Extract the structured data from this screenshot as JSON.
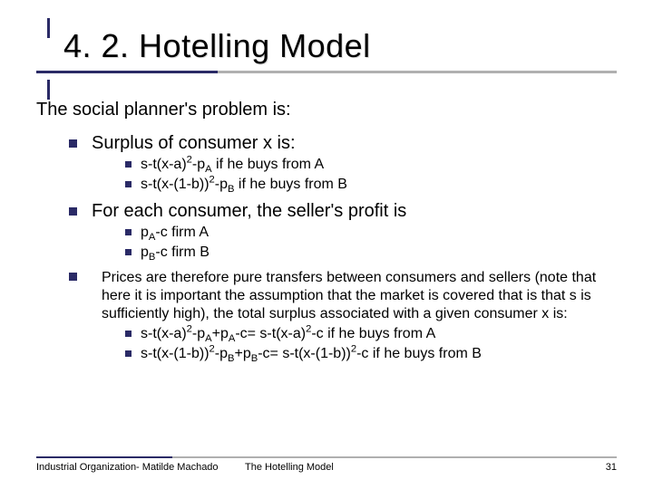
{
  "colors": {
    "bullet": "#2a2a66",
    "underline_grey": "#b0b0b0",
    "underline_navy": "#2a2a66",
    "text": "#000000",
    "bg": "#ffffff"
  },
  "title": "4. 2. Hotelling Model",
  "lead": "The social planner's problem is:",
  "items": {
    "p1": "Surplus of consumer x is:",
    "p1a_pre": "s-t(x-a)",
    "p1a_post": "-p",
    "p1a_tail": " if he buys from A",
    "p1b_pre": "s-t(x-(1-b))",
    "p1b_post": "-p",
    "p1b_tail": " if he buys from B",
    "p2": "For each consumer, the seller's profit is",
    "p2a_pre": "p",
    "p2a_post": "-c firm A",
    "p2b_pre": "p",
    "p2b_post": "-c firm B",
    "p3": "Prices are therefore pure transfers between consumers and sellers (note that here it is important the assumption that the market is covered that is that s is sufficiently high), the total surplus associated with a given consumer x is:",
    "p3a_l": "s-t(x-a)",
    "p3a_m": "-p",
    "p3a_r": "+p",
    "p3a_eq": "-c= s-t(x-a)",
    "p3a_tail": "-c if he buys from A",
    "p3b_l": "s-t(x-(1-b))",
    "p3b_m": "-p",
    "p3b_r": "+p",
    "p3b_eq": "-c= s-t(x-(1-b))",
    "p3b_tail": "-c if  he buys from B"
  },
  "footer": {
    "left": "Industrial Organization- Matilde Machado",
    "center": "The Hotelling Model",
    "page": "31"
  }
}
